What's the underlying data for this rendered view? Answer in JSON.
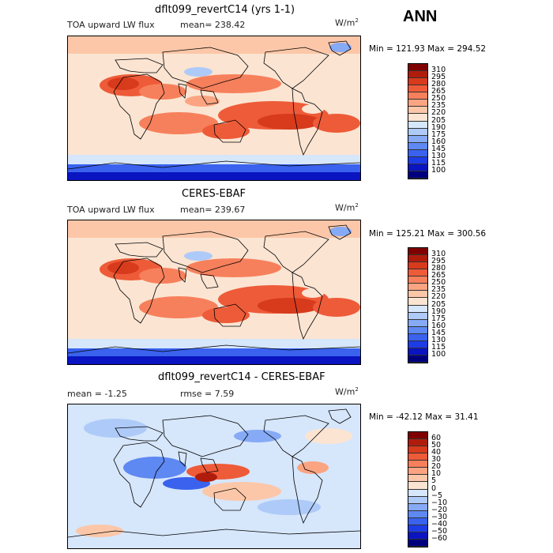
{
  "season": "ANN",
  "panels": [
    {
      "title": "dflt099_revertC14 (yrs 1-1)",
      "var_label": "TOA upward LW flux",
      "stat_text": "mean= 238.42",
      "units": "W/m",
      "units_sup": "2",
      "minmax": "Min = 121.93 Max = 294.52",
      "kind": "abs"
    },
    {
      "title": "CERES-EBAF",
      "var_label": "TOA upward LW flux",
      "stat_text": "mean= 239.67",
      "units": "W/m",
      "units_sup": "2",
      "minmax": "Min = 125.21 Max = 300.56",
      "kind": "abs"
    },
    {
      "title": "dflt099_revertC14 - CERES-EBAF",
      "mean_text": "mean =  -1.25",
      "rmse_text": "rmse =   7.59",
      "units": "W/m",
      "units_sup": "2",
      "minmax": "Min = -42.12 Max =  31.41",
      "kind": "diff"
    }
  ],
  "chart_data": [
    {
      "type": "heatmap",
      "title": "dflt099_revertC14 (yrs 1-1)",
      "variable": "TOA upward LW flux",
      "units": "W/m2",
      "mean": 238.42,
      "min": 121.93,
      "max": 294.52,
      "levels": [
        100,
        115,
        130,
        145,
        160,
        175,
        190,
        205,
        220,
        235,
        250,
        265,
        280,
        295,
        310
      ],
      "colors": [
        "#00007f",
        "#0a14c0",
        "#1e3ce6",
        "#3a62ee",
        "#5e88f2",
        "#86aaf5",
        "#aecaf8",
        "#d6e6fb",
        "#fbe4d2",
        "#fcc7a8",
        "#fba482",
        "#f7805c",
        "#ee5b38",
        "#d83a1c",
        "#b01c0c",
        "#7f0000"
      ]
    },
    {
      "type": "heatmap",
      "title": "CERES-EBAF",
      "variable": "TOA upward LW flux",
      "units": "W/m2",
      "mean": 239.67,
      "min": 125.21,
      "max": 300.56,
      "levels": [
        100,
        115,
        130,
        145,
        160,
        175,
        190,
        205,
        220,
        235,
        250,
        265,
        280,
        295,
        310
      ],
      "colors": [
        "#00007f",
        "#0a14c0",
        "#1e3ce6",
        "#3a62ee",
        "#5e88f2",
        "#86aaf5",
        "#aecaf8",
        "#d6e6fb",
        "#fbe4d2",
        "#fcc7a8",
        "#fba482",
        "#f7805c",
        "#ee5b38",
        "#d83a1c",
        "#b01c0c",
        "#7f0000"
      ]
    },
    {
      "type": "heatmap",
      "title": "dflt099_revertC14 - CERES-EBAF",
      "units": "W/m2",
      "mean": -1.25,
      "rmse": 7.59,
      "min": -42.12,
      "max": 31.41,
      "levels": [
        -60,
        -50,
        -40,
        -30,
        -20,
        -10,
        -5,
        0,
        5,
        10,
        20,
        30,
        40,
        50,
        60
      ],
      "colors": [
        "#00007f",
        "#0a14c0",
        "#1e3ce6",
        "#3a62ee",
        "#5e88f2",
        "#86aaf5",
        "#aecaf8",
        "#d6e6fb",
        "#fbe4d2",
        "#fcc7a8",
        "#fba482",
        "#f7805c",
        "#ee5b38",
        "#d83a1c",
        "#b01c0c",
        "#7f0000"
      ]
    }
  ]
}
